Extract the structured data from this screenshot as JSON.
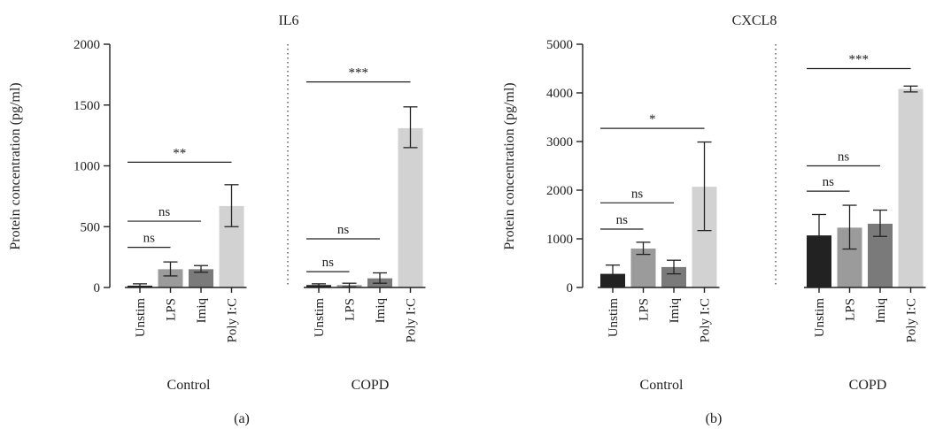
{
  "figure_labels": [
    "(a)",
    "(b)"
  ],
  "chart_data": [
    {
      "type": "bar",
      "title": "IL6",
      "xlabel": "",
      "ylabel": "Protein concentration (pg/ml)",
      "ylim": [
        0,
        2000
      ],
      "yticks": [
        0,
        500,
        1000,
        1500,
        2000
      ],
      "categories": [
        "Unstim",
        "LPS",
        "Imiq",
        "Poly I:C"
      ],
      "groups": [
        {
          "label": "Control",
          "values": [
            15,
            150,
            150,
            670
          ],
          "err_low": [
            5,
            95,
            125,
            500
          ],
          "err_high": [
            30,
            210,
            180,
            845
          ]
        },
        {
          "label": "COPD",
          "values": [
            20,
            20,
            75,
            1310
          ],
          "err_low": [
            10,
            5,
            35,
            1150
          ],
          "err_high": [
            30,
            35,
            120,
            1485
          ]
        }
      ],
      "bar_colors": [
        "#222222",
        "#9b9b9b",
        "#7a7a7a",
        "#d2d2d2"
      ],
      "significance": [
        {
          "group": 0,
          "from": 0,
          "to": 1,
          "y": 330,
          "label": "ns"
        },
        {
          "group": 0,
          "from": 0,
          "to": 2,
          "y": 545,
          "label": "ns"
        },
        {
          "group": 0,
          "from": 0,
          "to": 3,
          "y": 1030,
          "label": "**"
        },
        {
          "group": 1,
          "from": 0,
          "to": 1,
          "y": 130,
          "label": "ns"
        },
        {
          "group": 1,
          "from": 0,
          "to": 2,
          "y": 400,
          "label": "ns"
        },
        {
          "group": 1,
          "from": 0,
          "to": 3,
          "y": 1690,
          "label": "***"
        }
      ]
    },
    {
      "type": "bar",
      "title": "CXCL8",
      "xlabel": "",
      "ylabel": "Protein concentration (pg/ml)",
      "ylim": [
        0,
        5000
      ],
      "yticks": [
        0,
        1000,
        2000,
        3000,
        4000,
        5000
      ],
      "categories": [
        "Unstim",
        "LPS",
        "Imiq",
        "Poly I:C"
      ],
      "groups": [
        {
          "label": "Control",
          "values": [
            280,
            800,
            420,
            2070
          ],
          "err_low": [
            100,
            680,
            280,
            1170
          ],
          "err_high": [
            460,
            930,
            560,
            2990
          ]
        },
        {
          "label": "COPD",
          "values": [
            1070,
            1230,
            1310,
            4080
          ],
          "err_low": [
            620,
            790,
            1050,
            4020
          ],
          "err_high": [
            1500,
            1690,
            1590,
            4140
          ]
        }
      ],
      "bar_colors": [
        "#222222",
        "#9b9b9b",
        "#7a7a7a",
        "#d2d2d2"
      ],
      "significance": [
        {
          "group": 0,
          "from": 0,
          "to": 1,
          "y": 1200,
          "label": "ns"
        },
        {
          "group": 0,
          "from": 0,
          "to": 2,
          "y": 1740,
          "label": "ns"
        },
        {
          "group": 0,
          "from": 0,
          "to": 3,
          "y": 3270,
          "label": "*"
        },
        {
          "group": 1,
          "from": 0,
          "to": 1,
          "y": 1980,
          "label": "ns"
        },
        {
          "group": 1,
          "from": 0,
          "to": 2,
          "y": 2500,
          "label": "ns"
        },
        {
          "group": 1,
          "from": 0,
          "to": 3,
          "y": 4500,
          "label": "***"
        }
      ]
    }
  ]
}
